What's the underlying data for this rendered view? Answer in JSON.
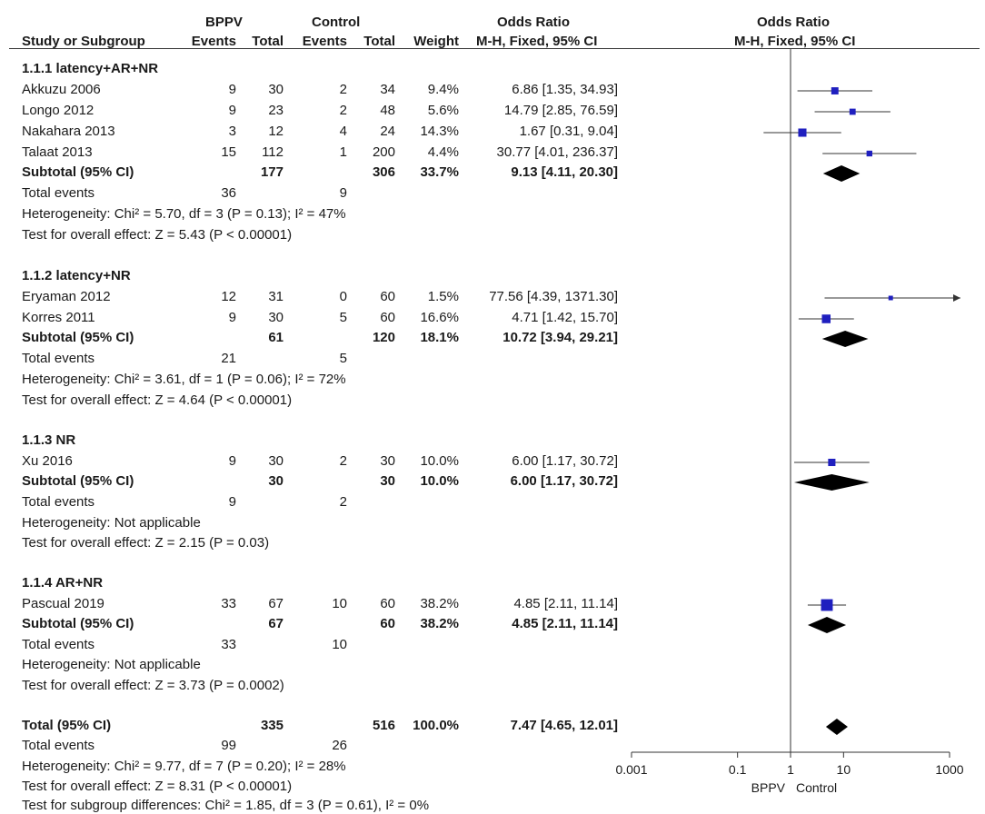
{
  "header": {
    "group1": "BPPV",
    "group2": "Control",
    "or_title": "Odds Ratio",
    "plot_title": "Odds Ratio",
    "cols": [
      "Study or Subgroup",
      "Events",
      "Total",
      "Events",
      "Total",
      "Weight",
      "M-H, Fixed, 95% CI",
      "M-H, Fixed, 95% CI"
    ]
  },
  "rows": [
    {
      "kind": "group",
      "label": "1.1.1 latency+AR+NR"
    },
    {
      "kind": "study",
      "label": "Akkuzu 2006",
      "e1": "9",
      "t1": "30",
      "e2": "2",
      "t2": "34",
      "w": "9.4%",
      "ci": "6.86 [1.35, 34.93]"
    },
    {
      "kind": "study",
      "label": "Longo 2012",
      "e1": "9",
      "t1": "23",
      "e2": "2",
      "t2": "48",
      "w": "5.6%",
      "ci": "14.79 [2.85, 76.59]"
    },
    {
      "kind": "study",
      "label": "Nakahara 2013",
      "e1": "3",
      "t1": "12",
      "e2": "4",
      "t2": "24",
      "w": "14.3%",
      "ci": "1.67 [0.31, 9.04]"
    },
    {
      "kind": "study",
      "label": "Talaat 2013",
      "e1": "15",
      "t1": "112",
      "e2": "1",
      "t2": "200",
      "w": "4.4%",
      "ci": "30.77 [4.01, 236.37]"
    },
    {
      "kind": "subtotal",
      "label": "Subtotal (95% CI)",
      "t1": "177",
      "t2": "306",
      "w": "33.7%",
      "ci": "9.13 [4.11, 20.30]"
    },
    {
      "kind": "events",
      "label": "Total events",
      "e1": "36",
      "e2": "9"
    },
    {
      "kind": "note",
      "label": "Heterogeneity: Chi² = 5.70, df = 3 (P = 0.13); I² = 47%"
    },
    {
      "kind": "note",
      "label": "Test for overall effect: Z = 5.43 (P < 0.00001)"
    },
    {
      "kind": "group",
      "label": "1.1.2 latency+NR"
    },
    {
      "kind": "study",
      "label": "Eryaman 2012",
      "e1": "12",
      "t1": "31",
      "e2": "0",
      "t2": "60",
      "w": "1.5%",
      "ci": "77.56 [4.39, 1371.30]"
    },
    {
      "kind": "study",
      "label": "Korres 2011",
      "e1": "9",
      "t1": "30",
      "e2": "5",
      "t2": "60",
      "w": "16.6%",
      "ci": "4.71 [1.42, 15.70]"
    },
    {
      "kind": "subtotal",
      "label": "Subtotal (95% CI)",
      "t1": "61",
      "t2": "120",
      "w": "18.1%",
      "ci": "10.72 [3.94, 29.21]"
    },
    {
      "kind": "events",
      "label": "Total events",
      "e1": "21",
      "e2": "5"
    },
    {
      "kind": "note",
      "label": "Heterogeneity: Chi² = 3.61, df = 1 (P = 0.06); I² = 72%"
    },
    {
      "kind": "note",
      "label": "Test for overall effect: Z = 4.64 (P < 0.00001)"
    },
    {
      "kind": "group",
      "label": "1.1.3 NR"
    },
    {
      "kind": "study",
      "label": "Xu 2016",
      "e1": "9",
      "t1": "30",
      "e2": "2",
      "t2": "30",
      "w": "10.0%",
      "ci": "6.00 [1.17, 30.72]"
    },
    {
      "kind": "subtotal",
      "label": "Subtotal (95% CI)",
      "t1": "30",
      "t2": "30",
      "w": "10.0%",
      "ci": "6.00 [1.17, 30.72]"
    },
    {
      "kind": "events",
      "label": "Total events",
      "e1": "9",
      "e2": "2"
    },
    {
      "kind": "note",
      "label": "Heterogeneity: Not applicable"
    },
    {
      "kind": "note",
      "label": "Test for overall effect: Z = 2.15 (P = 0.03)"
    },
    {
      "kind": "group",
      "label": "1.1.4 AR+NR"
    },
    {
      "kind": "study",
      "label": "Pascual 2019",
      "e1": "33",
      "t1": "67",
      "e2": "10",
      "t2": "60",
      "w": "38.2%",
      "ci": "4.85 [2.11, 11.14]"
    },
    {
      "kind": "subtotal",
      "label": "Subtotal (95% CI)",
      "t1": "67",
      "t2": "60",
      "w": "38.2%",
      "ci": "4.85 [2.11, 11.14]"
    },
    {
      "kind": "events",
      "label": "Total events",
      "e1": "33",
      "e2": "10"
    },
    {
      "kind": "note",
      "label": "Heterogeneity: Not applicable"
    },
    {
      "kind": "note",
      "label": "Test for overall effect: Z = 3.73 (P = 0.0002)"
    },
    {
      "kind": "total",
      "label": "Total (95% CI)",
      "t1": "335",
      "t2": "516",
      "w": "100.0%",
      "ci": "7.47 [4.65, 12.01]"
    },
    {
      "kind": "events",
      "label": "Total events",
      "e1": "99",
      "e2": "26"
    },
    {
      "kind": "note",
      "label": "Heterogeneity: Chi² = 9.77, df = 7 (P = 0.20); I² = 28%"
    },
    {
      "kind": "note",
      "label": "Test for overall effect: Z = 8.31 (P < 0.00001)"
    },
    {
      "kind": "note",
      "label": "Test for subgroup differences: Chi² = 1.85, df = 3 (P = 0.61), I² = 0%"
    }
  ],
  "colors": {
    "marker": "#1f1fbf",
    "line": "#333333",
    "diamond": "#000000"
  },
  "chart_data": {
    "type": "forest",
    "title": "Odds Ratio",
    "xlabel_left": "BPPV",
    "xlabel_right": "Control",
    "x_scale": "log10",
    "xlim": [
      0.001,
      1000
    ],
    "ticks": [
      {
        "value": 0.001,
        "label": "0.001"
      },
      {
        "value": 0.1,
        "label": "0.1"
      },
      {
        "value": 1,
        "label": "1"
      },
      {
        "value": 10,
        "label": "10"
      },
      {
        "value": 1000,
        "label": "1000"
      }
    ],
    "reference_line": 1,
    "studies": [
      {
        "name": "Akkuzu 2006",
        "or": 6.86,
        "lo": 1.35,
        "hi": 34.93,
        "weight": 9.4
      },
      {
        "name": "Longo 2012",
        "or": 14.79,
        "lo": 2.85,
        "hi": 76.59,
        "weight": 5.6
      },
      {
        "name": "Nakahara 2013",
        "or": 1.67,
        "lo": 0.31,
        "hi": 9.04,
        "weight": 14.3
      },
      {
        "name": "Talaat 2013",
        "or": 30.77,
        "lo": 4.01,
        "hi": 236.37,
        "weight": 4.4
      },
      {
        "name": "Eryaman 2012",
        "or": 77.56,
        "lo": 4.39,
        "hi": 1371.3,
        "weight": 1.5
      },
      {
        "name": "Korres 2011",
        "or": 4.71,
        "lo": 1.42,
        "hi": 15.7,
        "weight": 16.6
      },
      {
        "name": "Xu 2016",
        "or": 6.0,
        "lo": 1.17,
        "hi": 30.72,
        "weight": 10.0
      },
      {
        "name": "Pascual 2019",
        "or": 4.85,
        "lo": 2.11,
        "hi": 11.14,
        "weight": 38.2
      }
    ],
    "pooled": [
      {
        "name": "Subtotal 1.1.1",
        "or": 9.13,
        "lo": 4.11,
        "hi": 20.3
      },
      {
        "name": "Subtotal 1.1.2",
        "or": 10.72,
        "lo": 3.94,
        "hi": 29.21
      },
      {
        "name": "Subtotal 1.1.3",
        "or": 6.0,
        "lo": 1.17,
        "hi": 30.72
      },
      {
        "name": "Subtotal 1.1.4",
        "or": 4.85,
        "lo": 2.11,
        "hi": 11.14
      },
      {
        "name": "Total",
        "or": 7.47,
        "lo": 4.65,
        "hi": 12.01
      }
    ]
  }
}
